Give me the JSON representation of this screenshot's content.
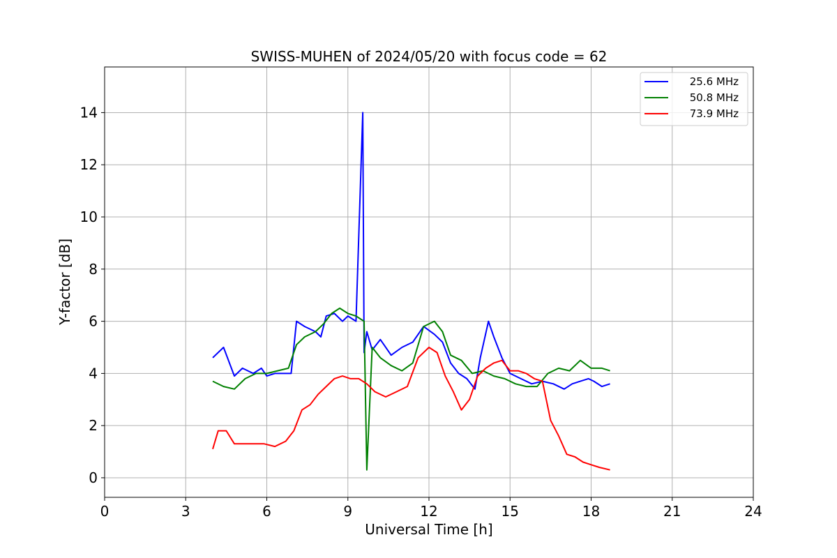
{
  "chart_data": {
    "type": "line",
    "title": "SWISS-MUHEN of 2024/05/20 with focus code = 62",
    "xlabel": "Universal Time [h]",
    "ylabel": "Y-factor [dB]",
    "xlim": [
      0,
      24
    ],
    "ylim": [
      -0.75,
      15.75
    ],
    "xticks": [
      0,
      3,
      6,
      9,
      12,
      15,
      18,
      21,
      24
    ],
    "yticks": [
      0,
      2,
      4,
      6,
      8,
      10,
      12,
      14
    ],
    "grid": true,
    "legend_position": "top-right",
    "series": [
      {
        "name": "25.6 MHz",
        "color": "#0000ff",
        "x": [
          4.0,
          4.4,
          4.8,
          5.1,
          5.5,
          5.8,
          6.0,
          6.3,
          6.6,
          6.9,
          7.1,
          7.4,
          7.8,
          8.0,
          8.2,
          8.5,
          8.8,
          9.0,
          9.3,
          9.55,
          9.6,
          9.7,
          9.9,
          10.2,
          10.6,
          11.0,
          11.4,
          11.8,
          12.2,
          12.5,
          12.8,
          13.1,
          13.4,
          13.7,
          13.9,
          14.2,
          14.4,
          14.7,
          15.0,
          15.4,
          15.8,
          16.2,
          16.6,
          17.0,
          17.3,
          17.6,
          17.9,
          18.1,
          18.4,
          18.7
        ],
        "y": [
          4.6,
          5.0,
          3.9,
          4.2,
          4.0,
          4.2,
          3.9,
          4.0,
          4.0,
          4.0,
          6.0,
          5.8,
          5.6,
          5.4,
          6.2,
          6.3,
          6.0,
          6.2,
          6.0,
          14.0,
          4.8,
          5.6,
          4.9,
          5.3,
          4.7,
          5.0,
          5.2,
          5.8,
          5.5,
          5.2,
          4.4,
          4.0,
          3.8,
          3.4,
          4.6,
          6.0,
          5.4,
          4.6,
          4.0,
          3.8,
          3.6,
          3.7,
          3.6,
          3.4,
          3.6,
          3.7,
          3.8,
          3.7,
          3.5,
          3.6
        ]
      },
      {
        "name": "50.8 MHz",
        "color": "#008000",
        "x": [
          4.0,
          4.4,
          4.8,
          5.2,
          5.6,
          6.0,
          6.4,
          6.8,
          7.1,
          7.4,
          7.8,
          8.1,
          8.4,
          8.7,
          9.0,
          9.3,
          9.6,
          9.7,
          9.9,
          10.2,
          10.6,
          11.0,
          11.4,
          11.8,
          12.2,
          12.5,
          12.8,
          13.2,
          13.6,
          14.0,
          14.4,
          14.8,
          15.2,
          15.6,
          16.0,
          16.4,
          16.8,
          17.2,
          17.6,
          18.0,
          18.4,
          18.7
        ],
        "y": [
          3.7,
          3.5,
          3.4,
          3.8,
          4.0,
          4.0,
          4.1,
          4.2,
          5.1,
          5.4,
          5.6,
          5.9,
          6.3,
          6.5,
          6.3,
          6.2,
          6.0,
          0.3,
          5.0,
          4.6,
          4.3,
          4.1,
          4.4,
          5.8,
          6.0,
          5.6,
          4.7,
          4.5,
          4.0,
          4.1,
          3.9,
          3.8,
          3.6,
          3.5,
          3.5,
          4.0,
          4.2,
          4.1,
          4.5,
          4.2,
          4.2,
          4.1
        ]
      },
      {
        "name": "73.9 MHz",
        "color": "#ff0000",
        "x": [
          4.0,
          4.2,
          4.5,
          4.8,
          5.1,
          5.5,
          5.9,
          6.3,
          6.7,
          7.0,
          7.3,
          7.6,
          7.9,
          8.2,
          8.5,
          8.8,
          9.1,
          9.4,
          9.7,
          10.0,
          10.4,
          10.8,
          11.2,
          11.6,
          12.0,
          12.3,
          12.6,
          12.9,
          13.2,
          13.5,
          13.8,
          14.1,
          14.4,
          14.7,
          15.0,
          15.3,
          15.6,
          15.9,
          16.2,
          16.5,
          16.8,
          17.1,
          17.4,
          17.7,
          18.0,
          18.3,
          18.7
        ],
        "y": [
          1.1,
          1.8,
          1.8,
          1.3,
          1.3,
          1.3,
          1.3,
          1.2,
          1.4,
          1.8,
          2.6,
          2.8,
          3.2,
          3.5,
          3.8,
          3.9,
          3.8,
          3.8,
          3.6,
          3.3,
          3.1,
          3.3,
          3.5,
          4.6,
          5.0,
          4.8,
          3.9,
          3.3,
          2.6,
          3.0,
          3.9,
          4.2,
          4.4,
          4.5,
          4.1,
          4.1,
          4.0,
          3.8,
          3.7,
          2.2,
          1.6,
          0.9,
          0.8,
          0.6,
          0.5,
          0.4,
          0.3
        ]
      }
    ]
  }
}
